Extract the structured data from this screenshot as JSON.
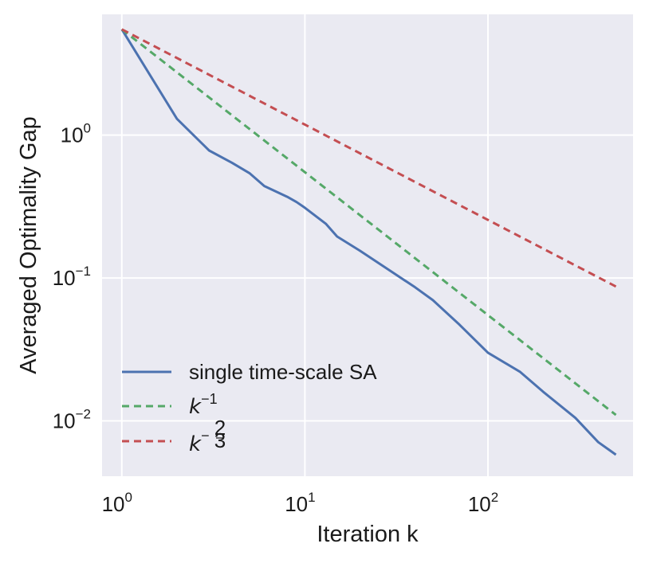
{
  "chart_data": {
    "type": "line",
    "title": "",
    "xlabel": "Iteration k",
    "ylabel": "Averaged Optimality Gap",
    "xscale": "log",
    "yscale": "log",
    "xlim": [
      0.78,
      620
    ],
    "ylim": [
      0.0041,
      7.0
    ],
    "grid": true,
    "legend_position": "lower-left",
    "x_ticks": [
      {
        "value": 1,
        "base": "10",
        "exp": "0"
      },
      {
        "value": 10,
        "base": "10",
        "exp": "1"
      },
      {
        "value": 100,
        "base": "10",
        "exp": "2"
      }
    ],
    "y_ticks": [
      {
        "value": 1,
        "base": "10",
        "exp": "0"
      },
      {
        "value": 0.1,
        "base": "10",
        "exp": "−1"
      },
      {
        "value": 0.01,
        "base": "10",
        "exp": "−2"
      }
    ],
    "series": [
      {
        "name": "single time-scale SA",
        "color": "#4c72b0",
        "style": "solid",
        "x": [
          1,
          2,
          3,
          4,
          5,
          6,
          8,
          9,
          10,
          13,
          15,
          20,
          30,
          40,
          50,
          70,
          100,
          150,
          200,
          300,
          400,
          500
        ],
        "y": [
          5.5,
          1.3,
          0.78,
          0.64,
          0.54,
          0.44,
          0.37,
          0.34,
          0.31,
          0.24,
          0.195,
          0.155,
          0.11,
          0.086,
          0.07,
          0.047,
          0.03,
          0.022,
          0.016,
          0.0105,
          0.0071,
          0.0058
        ]
      },
      {
        "name": "k^{-1}",
        "color": "#55a868",
        "style": "dashed",
        "x": [
          1,
          500
        ],
        "y": [
          5.5,
          0.011
        ]
      },
      {
        "name": "k^{-2/3}",
        "color": "#c44e52",
        "style": "dashed",
        "x": [
          1,
          500
        ],
        "y": [
          5.5,
          0.0872
        ]
      }
    ]
  },
  "legend": {
    "sa_label": "single time-scale SA",
    "k1_base": "k",
    "k1_exp": "−1",
    "k23_base": "k",
    "k23_minus": "−",
    "k23_num": "2",
    "k23_den": "3"
  }
}
